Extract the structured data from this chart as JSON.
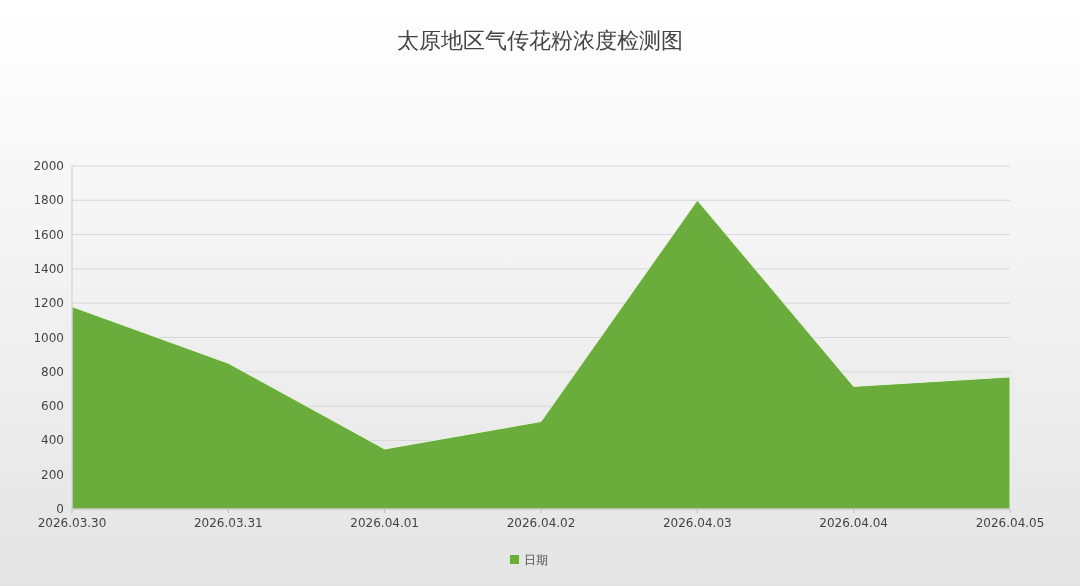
{
  "chart_data": {
    "type": "area",
    "title": "太原地区气传花粉浓度检测图",
    "categories": [
      "2026.03.30",
      "2026.03.31",
      "2026.04.01",
      "2026.04.02",
      "2026.04.03",
      "2026.04.04",
      "2026.04.05"
    ],
    "series": [
      {
        "name": "日期",
        "color": "#6aad3d",
        "values": [
          1180,
          850,
          350,
          510,
          1800,
          715,
          770
        ]
      }
    ],
    "ylim": [
      0,
      2000
    ],
    "yticks": [
      0,
      200,
      400,
      600,
      800,
      1000,
      1200,
      1400,
      1600,
      1800,
      2000
    ],
    "grid": "y",
    "legend": "bottom"
  }
}
